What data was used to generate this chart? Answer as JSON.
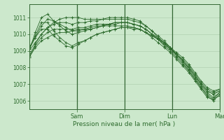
{
  "title": "",
  "xlabel": "Pression niveau de la mer( hPa )",
  "background_color": "#cce8cc",
  "plot_bg_color": "#cce8cc",
  "line_color": "#2d6b2d",
  "grid_color": "#aacaaa",
  "tick_color": "#2d6b2d",
  "vline_color": "#336633",
  "ylim": [
    1005.5,
    1011.8
  ],
  "yticks": [
    1006,
    1007,
    1008,
    1009,
    1010,
    1011
  ],
  "day_positions": [
    0.25,
    0.5,
    0.75,
    1.0
  ],
  "day_labels": [
    "Sam",
    "Dim",
    "Lun",
    "Mar"
  ],
  "series": [
    [
      1008.6,
      1009.2,
      1009.6,
      1009.8,
      1010.0,
      1010.1,
      1010.1,
      1010.2,
      1010.2,
      1010.3,
      1010.3,
      1010.4,
      1010.5,
      1010.5,
      1010.5,
      1010.5,
      1010.5,
      1010.4,
      1010.3,
      1010.1,
      1009.8,
      1009.5,
      1009.2,
      1008.9,
      1008.5,
      1008.1,
      1007.7,
      1007.2,
      1006.7,
      1006.2,
      1006.1,
      1006.3
    ],
    [
      1008.6,
      1009.3,
      1009.8,
      1010.1,
      1010.3,
      1010.3,
      1010.3,
      1010.3,
      1010.4,
      1010.4,
      1010.5,
      1010.6,
      1010.6,
      1010.6,
      1010.7,
      1010.7,
      1010.7,
      1010.6,
      1010.5,
      1010.3,
      1010.0,
      1009.7,
      1009.3,
      1009.0,
      1008.6,
      1008.2,
      1007.8,
      1007.3,
      1006.8,
      1006.3,
      1006.0,
      1006.4
    ],
    [
      1008.7,
      1009.4,
      1010.0,
      1010.4,
      1010.6,
      1010.7,
      1010.7,
      1010.6,
      1010.7,
      1010.7,
      1010.8,
      1010.8,
      1010.9,
      1010.9,
      1010.9,
      1010.9,
      1010.9,
      1010.8,
      1010.7,
      1010.5,
      1010.2,
      1009.8,
      1009.5,
      1009.1,
      1008.7,
      1008.3,
      1007.8,
      1007.3,
      1006.8,
      1006.4,
      1006.1,
      1006.5
    ],
    [
      1009.0,
      1009.5,
      1010.0,
      1010.4,
      1010.7,
      1010.9,
      1011.0,
      1011.0,
      1011.0,
      1010.9,
      1010.9,
      1010.9,
      1010.9,
      1011.0,
      1011.0,
      1011.0,
      1011.0,
      1010.9,
      1010.8,
      1010.5,
      1010.2,
      1009.9,
      1009.6,
      1009.2,
      1008.8,
      1008.4,
      1007.9,
      1007.4,
      1006.9,
      1006.5,
      1006.2,
      1006.5
    ],
    [
      1009.0,
      1010.1,
      1011.0,
      1011.2,
      1010.8,
      1010.5,
      1010.2,
      1010.0,
      1010.1,
      1010.2,
      1010.3,
      1010.4,
      1010.5,
      1010.6,
      1010.7,
      1010.7,
      1010.7,
      1010.6,
      1010.5,
      1010.3,
      1010.0,
      1009.7,
      1009.4,
      1009.1,
      1008.8,
      1008.4,
      1008.0,
      1007.5,
      1007.0,
      1006.6,
      1006.4,
      1006.6
    ],
    [
      1009.1,
      1009.8,
      1010.5,
      1010.9,
      1010.8,
      1010.6,
      1010.4,
      1010.2,
      1010.3,
      1010.3,
      1010.4,
      1010.5,
      1010.5,
      1010.6,
      1010.6,
      1010.7,
      1010.7,
      1010.6,
      1010.5,
      1010.3,
      1010.0,
      1009.8,
      1009.5,
      1009.2,
      1008.8,
      1008.4,
      1008.0,
      1007.5,
      1007.0,
      1006.6,
      1006.4,
      1006.6
    ],
    [
      1009.1,
      1009.9,
      1010.7,
      1010.7,
      1010.2,
      1009.8,
      1009.5,
      1009.3,
      1009.5,
      1009.6,
      1009.8,
      1010.0,
      1010.1,
      1010.2,
      1010.3,
      1010.4,
      1010.4,
      1010.4,
      1010.3,
      1010.1,
      1009.9,
      1009.7,
      1009.4,
      1009.1,
      1008.8,
      1008.5,
      1008.1,
      1007.6,
      1007.1,
      1006.7,
      1006.5,
      1006.7
    ],
    [
      1009.2,
      1009.8,
      1010.3,
      1010.3,
      1009.9,
      1009.6,
      1009.3,
      1009.2,
      1009.4,
      1009.6,
      1009.8,
      1010.0,
      1010.1,
      1010.2,
      1010.3,
      1010.4,
      1010.4,
      1010.3,
      1010.3,
      1010.1,
      1009.9,
      1009.7,
      1009.5,
      1009.2,
      1008.9,
      1008.6,
      1008.2,
      1007.7,
      1007.2,
      1006.8,
      1006.6,
      1006.7
    ]
  ]
}
